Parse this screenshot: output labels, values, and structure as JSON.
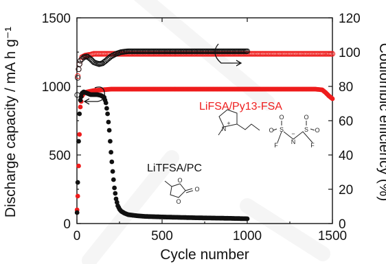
{
  "chart_data": {
    "type": "scatter",
    "xlabel": "Cycle number",
    "ylabel": "Discharge capacity / mA h g⁻¹",
    "y2label": "Coulombic efficiency (%)",
    "xlim": [
      0,
      1500
    ],
    "ylim": [
      0,
      1500
    ],
    "y2lim": [
      0,
      120
    ],
    "xticks": [
      "0",
      "500",
      "1000",
      "1500"
    ],
    "yticks": [
      "0",
      "500",
      "1000",
      "1500"
    ],
    "y2ticks": [
      "0",
      "20",
      "40",
      "60",
      "80",
      "100",
      "120"
    ],
    "grid": false,
    "colors": {
      "LiFSA/Py13-FSA": "#ee1c1c",
      "LiTFSA/PC": "#111111"
    },
    "series": [
      {
        "name": "LiFSA/Py13-FSA",
        "axis": "left",
        "marker": "filled-circle",
        "x": [
          1,
          5,
          10,
          15,
          20,
          30,
          40,
          60,
          80,
          100,
          150,
          200,
          300,
          400,
          500,
          600,
          700,
          800,
          900,
          1000,
          1100,
          1200,
          1300,
          1400,
          1440,
          1460,
          1480,
          1500
        ],
        "y": [
          100,
          200,
          420,
          650,
          850,
          930,
          950,
          960,
          965,
          970,
          975,
          980,
          980,
          980,
          980,
          980,
          980,
          980,
          980,
          980,
          980,
          980,
          980,
          980,
          975,
          955,
          930,
          910
        ]
      },
      {
        "name": "LiFSA/Py13-FSA",
        "axis": "right",
        "marker": "open-circle",
        "x": [
          5,
          10,
          15,
          20,
          30,
          50,
          80,
          100,
          150,
          200,
          300,
          400,
          500,
          600,
          700,
          800,
          900,
          1000,
          1100,
          1200,
          1300,
          1400,
          1450,
          1480,
          1500
        ],
        "y": [
          86,
          90,
          93,
          95,
          97,
          98,
          98.5,
          99,
          99,
          99,
          99,
          99,
          99,
          99,
          99,
          99,
          99,
          99,
          99,
          99,
          99,
          99,
          99,
          99,
          99
        ]
      },
      {
        "name": "LiTFSA/PC",
        "axis": "left",
        "marker": "filled-circle",
        "x": [
          1,
          5,
          10,
          15,
          20,
          30,
          40,
          60,
          80,
          100,
          120,
          140,
          160,
          170,
          180,
          190,
          200,
          210,
          220,
          230,
          240,
          250,
          260,
          280,
          300,
          350,
          400,
          500,
          600,
          700,
          800,
          900,
          1000
        ],
        "y": [
          80,
          300,
          600,
          800,
          900,
          950,
          960,
          950,
          940,
          940,
          940,
          935,
          920,
          880,
          800,
          680,
          520,
          380,
          260,
          180,
          130,
          105,
          90,
          75,
          65,
          57,
          52,
          48,
          45,
          42,
          40,
          38,
          35
        ]
      },
      {
        "name": "LiTFSA/PC",
        "axis": "right",
        "marker": "open-circle",
        "x": [
          2,
          5,
          10,
          15,
          20,
          30,
          40,
          60,
          80,
          100,
          130,
          150,
          170,
          200,
          230,
          260,
          300,
          350,
          400,
          500,
          600,
          700,
          800,
          900,
          1000
        ],
        "y": [
          75,
          85,
          90,
          93,
          95,
          96,
          97,
          97.5,
          96,
          94,
          93,
          93.5,
          95,
          97.5,
          99,
          100,
          100.5,
          100.5,
          100.5,
          100.5,
          100.5,
          100.5,
          100.5,
          100.5,
          100.5
        ]
      }
    ],
    "annotations": [
      {
        "text": "LiFSA/Py13-FSA",
        "color": "#ee1c1c"
      },
      {
        "text": "LiTFSA/PC",
        "color": "#111111"
      }
    ],
    "structure_atoms": [
      "N",
      "+",
      "O",
      "O",
      "O",
      "F",
      "S",
      "O",
      "O",
      "N",
      "−",
      "S",
      "O",
      "O",
      "F"
    ]
  }
}
